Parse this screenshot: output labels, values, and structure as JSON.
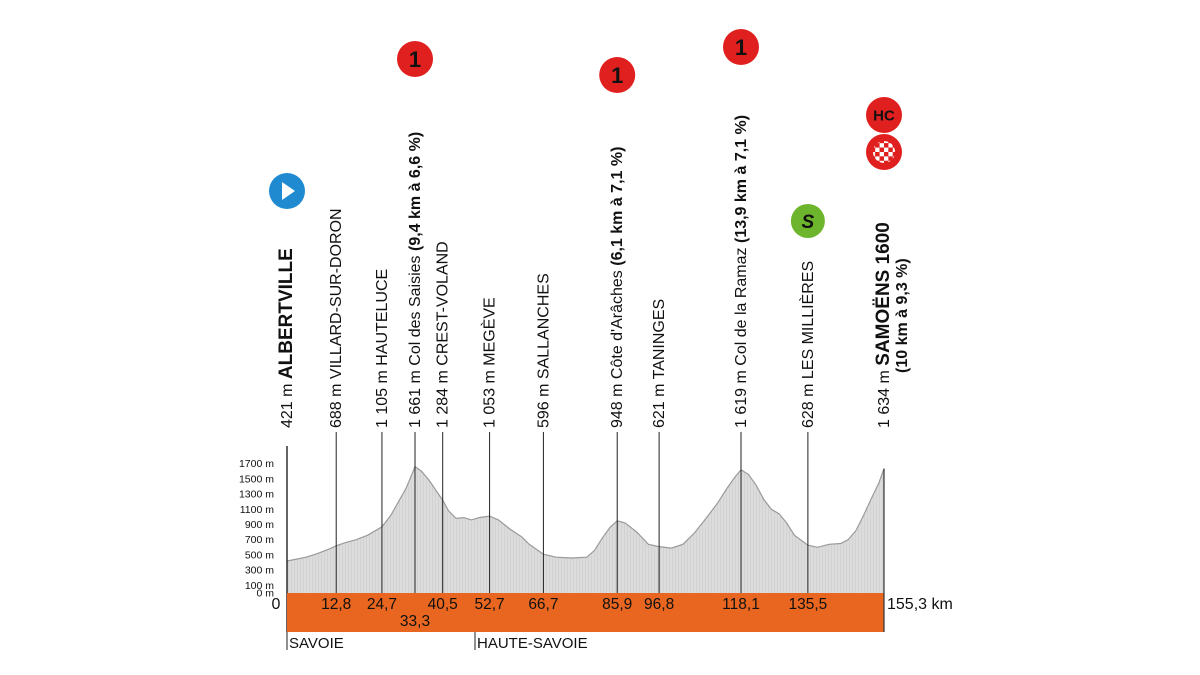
{
  "chart_data": {
    "type": "area",
    "title": "",
    "xlabel": "",
    "ylabel": "",
    "total_distance_label": "155,3 km",
    "x_start_label": "0",
    "xlim": [
      0,
      155.3
    ],
    "ylim": [
      0,
      1800
    ],
    "y_ticks": [
      "0 m",
      "100 m",
      "300 m",
      "500 m",
      "700 m",
      "900 m",
      "1100 m",
      "1300 m",
      "1500 m",
      "1700 m"
    ],
    "y_tick_values": [
      0,
      100,
      300,
      500,
      700,
      900,
      1100,
      1300,
      1500,
      1700
    ],
    "colors": {
      "band": "#e8661f",
      "profile_fill": "#d2d2d2",
      "profile_stroke": "#9a9a9a",
      "climb_badge": "#e0201e",
      "sprint_badge": "#6cb52c",
      "start_badge": "#1f8ad0"
    },
    "waypoints": [
      {
        "km": 0,
        "km_label": "",
        "alt_label": "421 m",
        "name": "ALBERTVILLE",
        "bold": true,
        "icon": "start-icon"
      },
      {
        "km": 12.8,
        "km_label": "12,8",
        "alt_label": "688 m",
        "name": "VILLARD-SUR-DORON",
        "bold": false
      },
      {
        "km": 24.7,
        "km_label": "24,7",
        "alt_label": "1 105 m",
        "name": "HAUTELUCE",
        "bold": false
      },
      {
        "km": 33.3,
        "km_label": "33,3",
        "alt_label": "1 661 m",
        "name": "Col des Saisies",
        "climb_detail": "(9,4 km à 6,6 %)",
        "bold": false,
        "icon": "category-1-icon",
        "icon_text": "1"
      },
      {
        "km": 40.5,
        "km_label": "40,5",
        "alt_label": "1 284 m",
        "name": "CREST-VOLAND",
        "bold": false
      },
      {
        "km": 52.7,
        "km_label": "52,7",
        "alt_label": "1 053 m",
        "name": "MEGÈVE",
        "bold": false
      },
      {
        "km": 66.7,
        "km_label": "66,7",
        "alt_label": "596 m",
        "name": "SALLANCHES",
        "bold": false
      },
      {
        "km": 85.9,
        "km_label": "85,9",
        "alt_label": "948 m",
        "name": "Côte d'Arâches",
        "climb_detail": "(6,1 km à 7,1 %)",
        "bold": false,
        "icon": "category-1-icon",
        "icon_text": "1"
      },
      {
        "km": 96.8,
        "km_label": "96,8",
        "alt_label": "621 m",
        "name": "TANINGES",
        "bold": false
      },
      {
        "km": 118.1,
        "km_label": "118,1",
        "alt_label": "1 619 m",
        "name": "Col de la Ramaz",
        "climb_detail": "(13,9 km à 7,1 %)",
        "bold": false,
        "icon": "category-1-icon",
        "icon_text": "1"
      },
      {
        "km": 135.5,
        "km_label": "135,5",
        "alt_label": "628 m",
        "name": "LES MILLIÈRES",
        "bold": false,
        "icon": "sprint-icon",
        "icon_text": "S"
      },
      {
        "km": 155.3,
        "km_label": "",
        "alt_label": "1 634 m",
        "name": "SAMOËNS 1600",
        "climb_detail": "(10 km à 9,3 %)",
        "bold": true,
        "icon": "hors-categorie-icon",
        "icon_text": "HC",
        "icon2": "finish-flag-icon"
      }
    ],
    "profile": [
      [
        0,
        421
      ],
      [
        2,
        440
      ],
      [
        5,
        470
      ],
      [
        8,
        520
      ],
      [
        11,
        580
      ],
      [
        12.8,
        620
      ],
      [
        15,
        660
      ],
      [
        18,
        700
      ],
      [
        21,
        760
      ],
      [
        24.7,
        870
      ],
      [
        27,
        1020
      ],
      [
        29,
        1200
      ],
      [
        31,
        1380
      ],
      [
        32.5,
        1560
      ],
      [
        33.3,
        1661
      ],
      [
        35,
        1600
      ],
      [
        37,
        1480
      ],
      [
        39,
        1330
      ],
      [
        40.5,
        1220
      ],
      [
        42,
        1080
      ],
      [
        44,
        980
      ],
      [
        46,
        990
      ],
      [
        48,
        960
      ],
      [
        50,
        990
      ],
      [
        52.7,
        1010
      ],
      [
        55,
        960
      ],
      [
        58,
        840
      ],
      [
        61,
        740
      ],
      [
        63,
        640
      ],
      [
        66.7,
        510
      ],
      [
        70,
        470
      ],
      [
        74,
        460
      ],
      [
        78,
        470
      ],
      [
        80,
        560
      ],
      [
        82,
        720
      ],
      [
        84,
        860
      ],
      [
        85.9,
        948
      ],
      [
        88,
        920
      ],
      [
        91,
        800
      ],
      [
        94,
        640
      ],
      [
        96.8,
        610
      ],
      [
        100,
        590
      ],
      [
        103,
        640
      ],
      [
        106,
        790
      ],
      [
        109,
        980
      ],
      [
        112,
        1180
      ],
      [
        114.5,
        1380
      ],
      [
        116.5,
        1520
      ],
      [
        118.1,
        1619
      ],
      [
        120,
        1560
      ],
      [
        122,
        1420
      ],
      [
        124,
        1230
      ],
      [
        126,
        1100
      ],
      [
        128,
        1040
      ],
      [
        130,
        920
      ],
      [
        132,
        760
      ],
      [
        135.5,
        628
      ],
      [
        138,
        600
      ],
      [
        141,
        640
      ],
      [
        144,
        650
      ],
      [
        146,
        700
      ],
      [
        148,
        820
      ],
      [
        150,
        1020
      ],
      [
        152,
        1240
      ],
      [
        154,
        1450
      ],
      [
        155.3,
        1634
      ]
    ],
    "regions": [
      {
        "km": 0,
        "name": "SAVOIE"
      },
      {
        "km": 33.3,
        "name": "HAUTE-SAVOIE"
      }
    ]
  }
}
